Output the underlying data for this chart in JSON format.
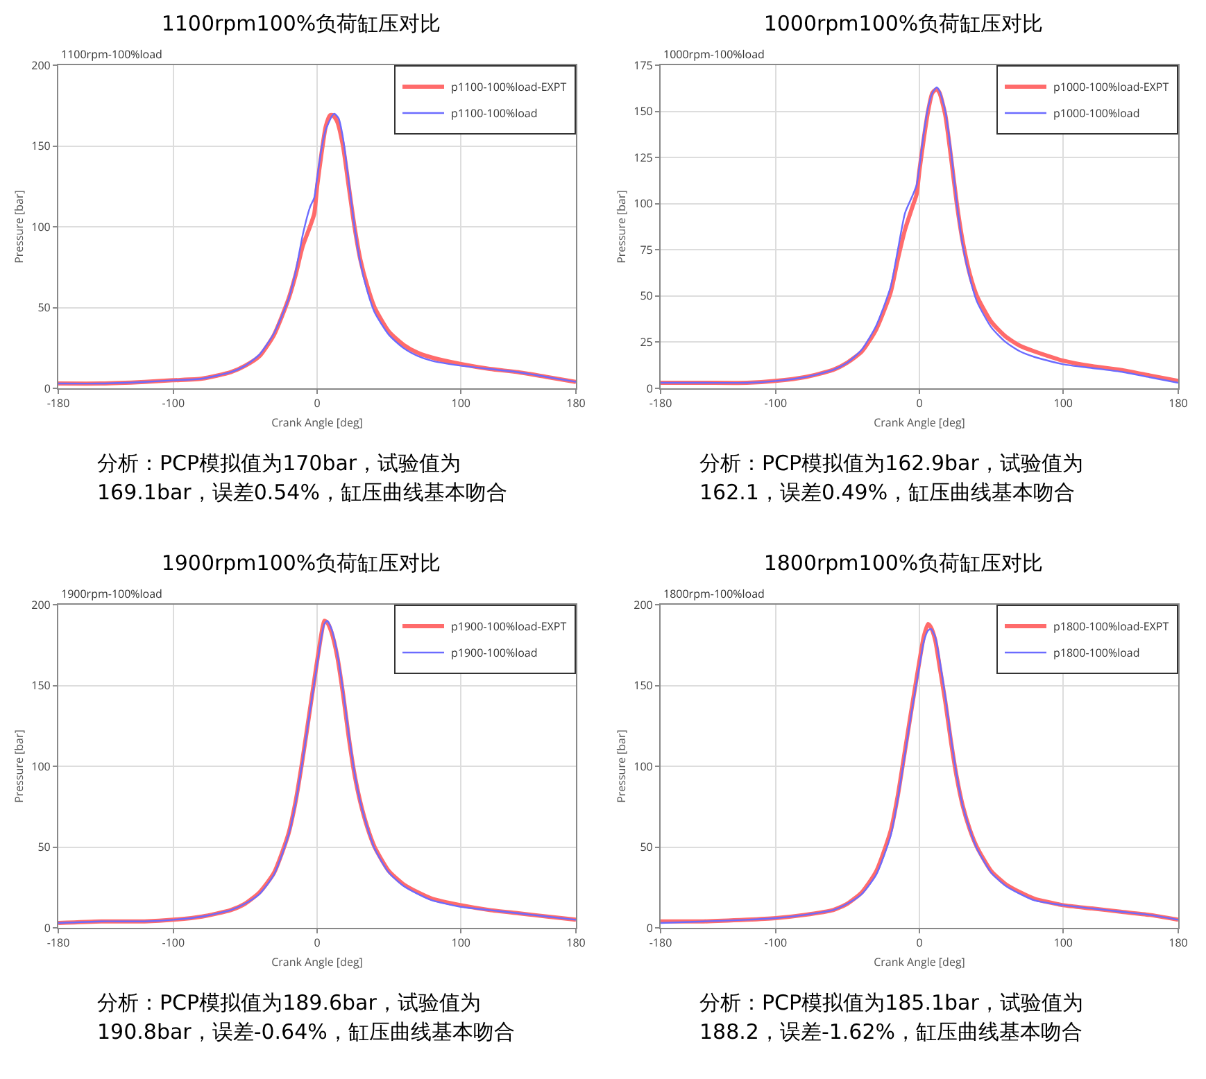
{
  "chart_data": [
    {
      "type": "line",
      "title": "1100rpm100%负荷缸压对比",
      "subtitle": "1100rpm-100%load",
      "xlabel": "Crank Angle [deg]",
      "ylabel": "Pressure [bar]",
      "xlim": [
        -180,
        180
      ],
      "xticks": [
        -180,
        -100,
        0,
        100,
        180
      ],
      "ylim": [
        0,
        200
      ],
      "yticks": [
        0,
        50,
        100,
        150,
        200
      ],
      "grid": true,
      "legend": "top right",
      "annotations": [
        "分析：PCP模拟值为170bar，试验值为\n169.1bar，误差0.54%，缸压曲线基本吻合"
      ],
      "series": [
        {
          "name": "p1100-100%load-EXPT",
          "color": "#ff6b6b",
          "x": [
            -180,
            -150,
            -120,
            -100,
            -80,
            -60,
            -50,
            -40,
            -30,
            -20,
            -15,
            -10,
            -5,
            -2,
            0,
            3,
            6,
            9,
            11,
            14,
            18,
            22,
            26,
            30,
            35,
            40,
            50,
            60,
            70,
            80,
            100,
            120,
            140,
            160,
            180
          ],
          "values": [
            3,
            3,
            4,
            5,
            6,
            10,
            14,
            20,
            33,
            55,
            70,
            88,
            100,
            108,
            125,
            145,
            162,
            169,
            169,
            165,
            150,
            125,
            100,
            80,
            63,
            50,
            35,
            27,
            22,
            19,
            15,
            12,
            10,
            7,
            4
          ]
        },
        {
          "name": "p1100-100%load",
          "color": "#6b6bff",
          "x": [
            -180,
            -150,
            -120,
            -100,
            -80,
            -60,
            -50,
            -40,
            -30,
            -20,
            -15,
            -10,
            -5,
            -2,
            0,
            3,
            6,
            10,
            12,
            15,
            18,
            22,
            26,
            30,
            35,
            40,
            50,
            60,
            70,
            80,
            100,
            120,
            140,
            160,
            180
          ],
          "values": [
            3,
            3,
            4,
            5,
            6,
            10,
            14,
            21,
            34,
            55,
            72,
            95,
            112,
            118,
            130,
            148,
            160,
            168,
            170,
            167,
            155,
            128,
            100,
            78,
            60,
            47,
            33,
            25,
            20,
            17,
            14,
            12,
            10,
            7,
            4
          ]
        }
      ]
    },
    {
      "type": "line",
      "title": "1000rpm100%负荷缸压对比",
      "subtitle": "1000rpm-100%load",
      "xlabel": "Crank Angle [deg]",
      "ylabel": "Pressure [bar]",
      "xlim": [
        -180,
        180
      ],
      "xticks": [
        -180,
        -100,
        0,
        100,
        180
      ],
      "ylim": [
        0,
        175
      ],
      "yticks": [
        0,
        25,
        50,
        75,
        100,
        125,
        150,
        175
      ],
      "grid": true,
      "legend": "top right",
      "annotations": [
        "分析：PCP模拟值为162.9bar，试验值为\n162.1，误差0.49%，缸压曲线基本吻合"
      ],
      "series": [
        {
          "name": "p1000-100%load-EXPT",
          "color": "#ff6b6b",
          "x": [
            -180,
            -150,
            -120,
            -100,
            -80,
            -60,
            -50,
            -40,
            -30,
            -20,
            -15,
            -10,
            -5,
            -2,
            0,
            3,
            6,
            9,
            12,
            14,
            18,
            22,
            26,
            30,
            35,
            40,
            50,
            60,
            70,
            80,
            100,
            120,
            140,
            160,
            180
          ],
          "values": [
            3,
            3,
            3,
            4,
            6,
            10,
            14,
            20,
            32,
            52,
            70,
            86,
            98,
            105,
            118,
            135,
            150,
            160,
            162,
            160,
            148,
            125,
            100,
            80,
            62,
            50,
            36,
            28,
            23,
            20,
            15,
            12,
            10,
            7,
            4
          ]
        },
        {
          "name": "p1000-100%load",
          "color": "#6b6bff",
          "x": [
            -180,
            -150,
            -120,
            -100,
            -80,
            -60,
            -50,
            -40,
            -30,
            -20,
            -15,
            -10,
            -5,
            -2,
            0,
            3,
            6,
            9,
            12,
            14,
            18,
            22,
            26,
            30,
            35,
            40,
            50,
            60,
            70,
            80,
            100,
            120,
            140,
            160,
            180
          ],
          "values": [
            3,
            3,
            3,
            4,
            6,
            10,
            14,
            21,
            34,
            55,
            75,
            95,
            104,
            110,
            120,
            138,
            152,
            160,
            163,
            161,
            150,
            128,
            100,
            78,
            60,
            47,
            33,
            25,
            20,
            17,
            13,
            11,
            9,
            6,
            3
          ]
        }
      ]
    },
    {
      "type": "line",
      "title": "1900rpm100%负荷缸压对比",
      "subtitle": "1900rpm-100%load",
      "xlabel": "Crank Angle [deg]",
      "ylabel": "Pressure [bar]",
      "xlim": [
        -180,
        180
      ],
      "xticks": [
        -180,
        -100,
        0,
        100,
        180
      ],
      "ylim": [
        0,
        200
      ],
      "yticks": [
        0,
        50,
        100,
        150,
        200
      ],
      "grid": true,
      "legend": "top right",
      "annotations": [
        "分析：PCP模拟值为189.6bar，试验值为\n190.8bar，误差-0.64%，缸压曲线基本吻合"
      ],
      "series": [
        {
          "name": "p1900-100%load-EXPT",
          "color": "#ff6b6b",
          "x": [
            -180,
            -150,
            -120,
            -100,
            -80,
            -60,
            -50,
            -40,
            -30,
            -20,
            -15,
            -10,
            -5,
            0,
            3,
            5,
            7,
            10,
            14,
            18,
            22,
            26,
            30,
            35,
            40,
            50,
            60,
            70,
            80,
            100,
            120,
            140,
            160,
            180
          ],
          "values": [
            3,
            4,
            4,
            5,
            7,
            11,
            15,
            22,
            34,
            58,
            78,
            105,
            135,
            165,
            182,
            190,
            189,
            183,
            168,
            145,
            118,
            95,
            78,
            62,
            50,
            35,
            27,
            22,
            18,
            14,
            11,
            9,
            7,
            5
          ]
        },
        {
          "name": "p1900-100%load",
          "color": "#6b6bff",
          "x": [
            -180,
            -150,
            -120,
            -100,
            -80,
            -60,
            -50,
            -40,
            -30,
            -20,
            -15,
            -10,
            -5,
            0,
            3,
            5,
            7,
            10,
            14,
            18,
            22,
            26,
            30,
            35,
            40,
            50,
            60,
            70,
            80,
            100,
            120,
            140,
            160,
            180
          ],
          "values": [
            3,
            4,
            4,
            5,
            7,
            11,
            15,
            21,
            33,
            57,
            77,
            104,
            134,
            163,
            180,
            188,
            190,
            185,
            170,
            147,
            120,
            96,
            78,
            62,
            49,
            34,
            26,
            21,
            17,
            13,
            11,
            9,
            7,
            5
          ]
        }
      ]
    },
    {
      "type": "line",
      "title": "1800rpm100%负荷缸压对比",
      "subtitle": "1800rpm-100%load",
      "xlabel": "Crank Angle [deg]",
      "ylabel": "Pressure [bar]",
      "xlim": [
        -180,
        180
      ],
      "xticks": [
        -180,
        -100,
        0,
        100,
        180
      ],
      "ylim": [
        0,
        200
      ],
      "yticks": [
        0,
        50,
        100,
        150,
        200
      ],
      "grid": true,
      "legend": "top right",
      "annotations": [
        "分析：PCP模拟值为185.1bar，试验值为\n188.2，误差-1.62%，缸压曲线基本吻合"
      ],
      "series": [
        {
          "name": "p1800-100%load-EXPT",
          "color": "#ff6b6b",
          "x": [
            -180,
            -150,
            -120,
            -100,
            -80,
            -60,
            -50,
            -40,
            -30,
            -20,
            -15,
            -10,
            -5,
            0,
            3,
            6,
            8,
            11,
            14,
            18,
            22,
            26,
            30,
            35,
            40,
            50,
            60,
            70,
            80,
            100,
            120,
            140,
            160,
            180
          ],
          "values": [
            4,
            4,
            5,
            6,
            8,
            11,
            15,
            22,
            35,
            60,
            82,
            110,
            138,
            165,
            180,
            188,
            186,
            178,
            162,
            140,
            115,
            93,
            76,
            61,
            50,
            35,
            27,
            22,
            18,
            14,
            12,
            10,
            8,
            5
          ]
        },
        {
          "name": "p1800-100%load",
          "color": "#6b6bff",
          "x": [
            -180,
            -150,
            -120,
            -100,
            -80,
            -60,
            -50,
            -40,
            -30,
            -20,
            -15,
            -10,
            -5,
            0,
            3,
            6,
            8,
            11,
            14,
            18,
            22,
            26,
            30,
            35,
            40,
            50,
            60,
            70,
            80,
            100,
            120,
            140,
            160,
            180
          ],
          "values": [
            3,
            4,
            5,
            6,
            8,
            11,
            15,
            21,
            33,
            57,
            80,
            108,
            136,
            162,
            177,
            184,
            185,
            180,
            166,
            143,
            117,
            94,
            76,
            61,
            49,
            34,
            26,
            21,
            17,
            14,
            12,
            10,
            8,
            5
          ]
        }
      ]
    }
  ]
}
